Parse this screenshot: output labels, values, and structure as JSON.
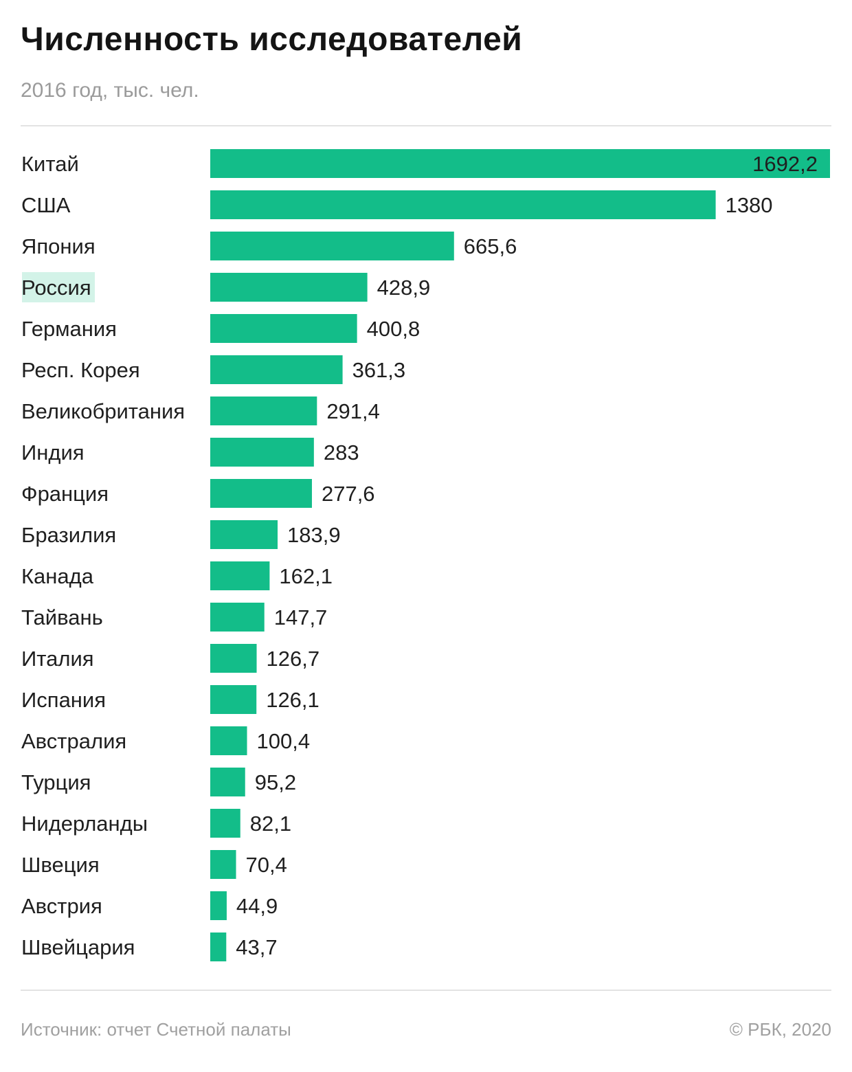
{
  "header": {
    "title": "Численность исследователей",
    "subtitle": "2016 год, тыс. чел."
  },
  "footer": {
    "source": "Источник: отчет Счетной палаты",
    "copyright": "© РБК, 2020"
  },
  "colors": {
    "bar": "#13bd89",
    "highlight_bg": "#d3f3e8",
    "label": "#1f1f1f"
  },
  "chart_data": {
    "type": "bar",
    "orientation": "horizontal",
    "title": "Численность исследователей",
    "subtitle": "2016 год, тыс. чел.",
    "categories": [
      "Китай",
      "США",
      "Япония",
      "Россия",
      "Германия",
      "Респ. Корея",
      "Великобритания",
      "Индия",
      "Франция",
      "Бразилия",
      "Канада",
      "Тайвань",
      "Италия",
      "Испания",
      "Австралия",
      "Турция",
      "Нидерланды",
      "Швеция",
      "Австрия",
      "Швейцария"
    ],
    "values": [
      1692.2,
      1380,
      665.6,
      428.9,
      400.8,
      361.3,
      291.4,
      283,
      277.6,
      183.9,
      162.1,
      147.7,
      126.7,
      126.1,
      100.4,
      95.2,
      82.1,
      70.4,
      44.9,
      43.7
    ],
    "value_labels": [
      "1692,2",
      "1380",
      "665,6",
      "428,9",
      "400,8",
      "361,3",
      "291,4",
      "283",
      "277,6",
      "183,9",
      "162,1",
      "147,7",
      "126,7",
      "126,1",
      "100,4",
      "95,2",
      "82,1",
      "70,4",
      "44,9",
      "43,7"
    ],
    "highlighted_category": "Россия",
    "xlim": [
      0,
      1692.2
    ],
    "grid": false,
    "legend": "none"
  }
}
